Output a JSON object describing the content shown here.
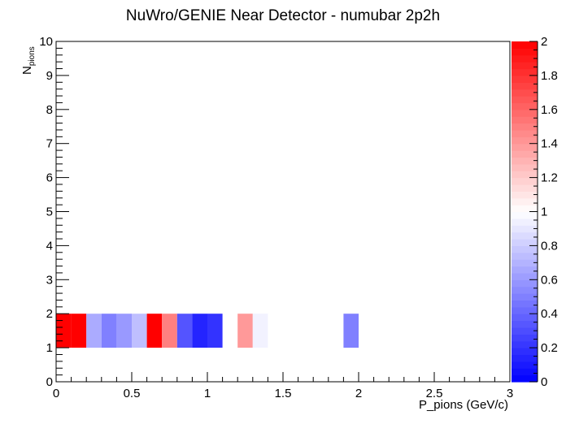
{
  "chart_data": {
    "type": "heatmap",
    "title": "NuWro/GENIE Near Detector - numubar 2p2h",
    "xlabel": "P_pions (GeV/c)",
    "ylabel_main": "N",
    "ylabel_sub": "pions",
    "xlim": [
      0,
      3
    ],
    "ylim": [
      0,
      10
    ],
    "zlim": [
      0,
      2
    ],
    "x_ticks": [
      {
        "value": 0,
        "label": "0"
      },
      {
        "value": 0.5,
        "label": "0.5"
      },
      {
        "value": 1,
        "label": "1"
      },
      {
        "value": 1.5,
        "label": "1.5"
      },
      {
        "value": 2,
        "label": "2"
      },
      {
        "value": 2.5,
        "label": "2.5"
      },
      {
        "value": 3,
        "label": "3"
      }
    ],
    "y_ticks": [
      {
        "value": 0,
        "label": "0"
      },
      {
        "value": 1,
        "label": "1"
      },
      {
        "value": 2,
        "label": "2"
      },
      {
        "value": 3,
        "label": "3"
      },
      {
        "value": 4,
        "label": "4"
      },
      {
        "value": 5,
        "label": "5"
      },
      {
        "value": 6,
        "label": "6"
      },
      {
        "value": 7,
        "label": "7"
      },
      {
        "value": 8,
        "label": "8"
      },
      {
        "value": 9,
        "label": "9"
      },
      {
        "value": 10,
        "label": "10"
      }
    ],
    "z_ticks": [
      {
        "value": 0,
        "label": "0"
      },
      {
        "value": 0.2,
        "label": "0.2"
      },
      {
        "value": 0.4,
        "label": "0.4"
      },
      {
        "value": 0.6,
        "label": "0.6"
      },
      {
        "value": 0.8,
        "label": "0.8"
      },
      {
        "value": 1,
        "label": "1"
      },
      {
        "value": 1.2,
        "label": "1.2"
      },
      {
        "value": 1.4,
        "label": "1.4"
      },
      {
        "value": 1.6,
        "label": "1.6"
      },
      {
        "value": 1.8,
        "label": "1.8"
      },
      {
        "value": 2,
        "label": "2"
      }
    ],
    "bin_width_x": 0.1,
    "cells": [
      {
        "x0": 0.0,
        "y0": 1,
        "value": 2.0
      },
      {
        "x0": 0.1,
        "y0": 1,
        "value": 2.0
      },
      {
        "x0": 0.2,
        "y0": 1,
        "value": 0.67
      },
      {
        "x0": 0.3,
        "y0": 1,
        "value": 0.5
      },
      {
        "x0": 0.4,
        "y0": 1,
        "value": 0.6
      },
      {
        "x0": 0.5,
        "y0": 1,
        "value": 0.75
      },
      {
        "x0": 0.6,
        "y0": 1,
        "value": 2.0
      },
      {
        "x0": 0.7,
        "y0": 1,
        "value": 1.5
      },
      {
        "x0": 0.8,
        "y0": 1,
        "value": 0.33
      },
      {
        "x0": 0.9,
        "y0": 1,
        "value": 0.14
      },
      {
        "x0": 1.0,
        "y0": 1,
        "value": 0.2
      },
      {
        "x0": 1.2,
        "y0": 1,
        "value": 1.4
      },
      {
        "x0": 1.3,
        "y0": 1,
        "value": 0.95
      },
      {
        "x0": 1.9,
        "y0": 1,
        "value": 0.5
      }
    ],
    "colormap": {
      "low": "#0000ff",
      "mid": "#ffffff",
      "high": "#ff0000"
    },
    "grid": false,
    "legend": "colorbar-right"
  }
}
